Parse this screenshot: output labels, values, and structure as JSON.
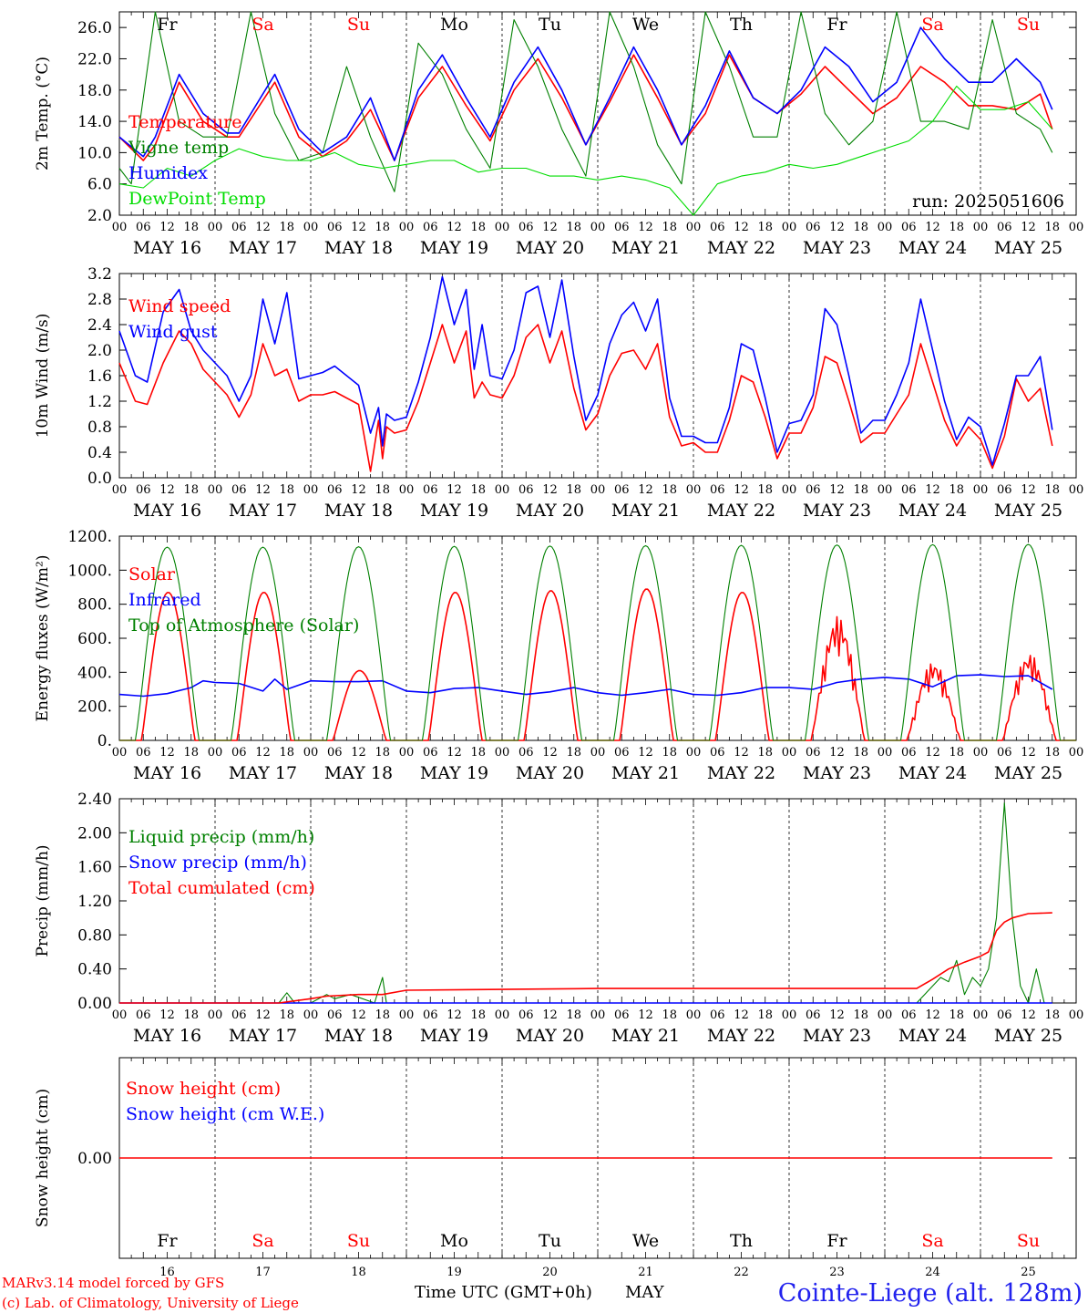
{
  "footer": {
    "credit_line1": "MARv3.14 model forced by GFS",
    "credit_line2": "(c) Lab. of Climatology, University of Liege",
    "xaxis_title": "Time UTC (GMT+0h)",
    "month": "MAY",
    "station": "Cointe-Liege (alt. 128m)"
  },
  "colors": {
    "red": "#ff0000",
    "blue": "#0000ff",
    "green": "#008000",
    "lime": "#00dd00",
    "grid": "#000000",
    "weekend": "#ff0000",
    "weekday": "#000000"
  },
  "timeline": {
    "days": [
      16,
      17,
      18,
      19,
      20,
      21,
      22,
      23,
      24,
      25
    ],
    "day_labels": [
      "MAY 16",
      "MAY 17",
      "MAY 18",
      "MAY 19",
      "MAY 20",
      "MAY 21",
      "MAY 22",
      "MAY 23",
      "MAY 24",
      "MAY 25"
    ],
    "day_numbers": [
      "16",
      "17",
      "18",
      "19",
      "20",
      "21",
      "22",
      "23",
      "24",
      "25"
    ],
    "weekdays": [
      "Fr",
      "Sa",
      "Su",
      "Mo",
      "Tu",
      "We",
      "Th",
      "Fr",
      "Sa",
      "Su"
    ],
    "weekend": [
      false,
      true,
      true,
      false,
      false,
      false,
      false,
      false,
      true,
      true
    ],
    "hour_ticks": [
      "00",
      "06",
      "12",
      "18"
    ],
    "final_tick": "00"
  },
  "chart_data": [
    {
      "type": "line",
      "ylabel": "2m Temp. (°C)",
      "ylim": [
        2,
        28
      ],
      "yticks": [
        "2.0",
        "6.0",
        "10.0",
        "14.0",
        "18.0",
        "22.0",
        "26.0"
      ],
      "ytick_values": [
        2,
        6,
        10,
        14,
        18,
        22,
        26
      ],
      "annotation": "run: 2025051606",
      "x_unit": "hours since MAY 16 00 UTC",
      "series": [
        {
          "name": "Temperature",
          "color": "red",
          "x": [
            0,
            6,
            9,
            15,
            21,
            27,
            30,
            39,
            45,
            51,
            57,
            63,
            69,
            75,
            81,
            87,
            93,
            99,
            105,
            111,
            117,
            123,
            129,
            135,
            141,
            147,
            153,
            159,
            165,
            171,
            177,
            183,
            189,
            195,
            201,
            207,
            213,
            219,
            225,
            231,
            234
          ],
          "y": [
            12,
            9,
            11,
            19,
            14,
            12,
            12,
            19,
            12,
            9.5,
            11.5,
            15.5,
            9,
            17,
            21,
            16,
            11.5,
            18,
            22,
            17,
            11,
            16.5,
            22.5,
            17,
            11,
            15,
            22.5,
            17,
            15,
            17.5,
            21,
            18,
            15,
            17,
            21,
            19,
            16,
            16,
            15.5,
            17.5,
            13
          ]
        },
        {
          "name": "Vigne temp",
          "color": "green",
          "x": [
            0,
            3,
            9,
            15,
            21,
            27,
            33,
            39,
            45,
            51,
            57,
            63,
            69,
            75,
            81,
            87,
            93,
            99,
            105,
            111,
            117,
            123,
            129,
            135,
            141,
            147,
            153,
            159,
            165,
            171,
            177,
            183,
            189,
            195,
            201,
            207,
            213,
            219,
            225,
            231,
            234
          ],
          "y": [
            8,
            6,
            28,
            14,
            12,
            12,
            28,
            15,
            9,
            10,
            21,
            12,
            5,
            24,
            20,
            13,
            8,
            27,
            21,
            13,
            7,
            28,
            21,
            11,
            6,
            28,
            21,
            12,
            12,
            28,
            15,
            11,
            14,
            28,
            14,
            14,
            13,
            27,
            15,
            13,
            10
          ]
        },
        {
          "name": "Humidex",
          "color": "blue",
          "x": [
            0,
            6,
            9,
            15,
            21,
            27,
            30,
            39,
            45,
            51,
            57,
            63,
            69,
            75,
            81,
            87,
            93,
            99,
            105,
            111,
            117,
            123,
            129,
            135,
            141,
            147,
            153,
            159,
            165,
            171,
            177,
            183,
            189,
            195,
            201,
            207,
            213,
            219,
            225,
            231,
            234
          ],
          "y": [
            12,
            9.5,
            12,
            20,
            15,
            12.5,
            12.5,
            20,
            13,
            10,
            12,
            17,
            9,
            18,
            22.5,
            17,
            12,
            19,
            23.5,
            18,
            11,
            17,
            23.5,
            18,
            11,
            16,
            23,
            17,
            15,
            18,
            23.5,
            21,
            16.5,
            19,
            26,
            22,
            19,
            19,
            22,
            19,
            15.5
          ]
        },
        {
          "name": "DewPoint Temp",
          "color": "lime",
          "x": [
            0,
            6,
            12,
            18,
            24,
            30,
            36,
            42,
            48,
            54,
            60,
            66,
            72,
            78,
            84,
            90,
            96,
            102,
            108,
            114,
            120,
            126,
            132,
            138,
            144,
            150,
            156,
            162,
            168,
            174,
            180,
            186,
            192,
            198,
            204,
            210,
            216,
            222,
            228,
            234
          ],
          "y": [
            6,
            5.5,
            8,
            7,
            9,
            10.5,
            9.5,
            9,
            9,
            10,
            8.5,
            8,
            8.5,
            9,
            9,
            7.5,
            8,
            8,
            7,
            7,
            6.5,
            7,
            6.5,
            5.5,
            2,
            6,
            7,
            7.5,
            8.5,
            8,
            8.5,
            9.5,
            10.5,
            11.5,
            14,
            18.5,
            15.5,
            15.5,
            16.5,
            13
          ]
        }
      ]
    },
    {
      "type": "line",
      "ylabel": "10m Wind (m/s)",
      "ylim": [
        0,
        3.2
      ],
      "yticks": [
        "0.0",
        "0.4",
        "0.8",
        "1.2",
        "1.6",
        "2.0",
        "2.4",
        "2.8",
        "3.2"
      ],
      "ytick_values": [
        0,
        0.4,
        0.8,
        1.2,
        1.6,
        2.0,
        2.4,
        2.8,
        3.2
      ],
      "x_unit": "hours since MAY 16 00 UTC",
      "series": [
        {
          "name": "Wind speed",
          "color": "red",
          "x": [
            0,
            4,
            7,
            11,
            15,
            18,
            21,
            24,
            27,
            30,
            33,
            36,
            39,
            42,
            45,
            48,
            51,
            54,
            57,
            60,
            63,
            65,
            66,
            67,
            69,
            72,
            75,
            78,
            81,
            84,
            87,
            89,
            91,
            93,
            96,
            99,
            102,
            105,
            108,
            111,
            114,
            117,
            120,
            123,
            126,
            129,
            132,
            135,
            138,
            141,
            144,
            147,
            150,
            153,
            156,
            159,
            162,
            165,
            168,
            171,
            174,
            177,
            180,
            183,
            186,
            189,
            192,
            195,
            198,
            201,
            204,
            207,
            210,
            213,
            216,
            219,
            222,
            225,
            228,
            231,
            234
          ],
          "y": [
            1.8,
            1.2,
            1.15,
            1.8,
            2.3,
            2.1,
            1.7,
            1.5,
            1.3,
            0.95,
            1.3,
            2.1,
            1.6,
            1.7,
            1.2,
            1.3,
            1.3,
            1.35,
            1.25,
            1.15,
            0.1,
            0.9,
            0.3,
            0.8,
            0.7,
            0.75,
            1.2,
            1.8,
            2.4,
            1.8,
            2.3,
            1.25,
            1.5,
            1.3,
            1.25,
            1.6,
            2.2,
            2.4,
            1.8,
            2.3,
            1.4,
            0.75,
            1.0,
            1.6,
            1.95,
            2.0,
            1.7,
            2.1,
            0.95,
            0.5,
            0.55,
            0.4,
            0.4,
            0.9,
            1.6,
            1.5,
            0.95,
            0.3,
            0.7,
            0.7,
            1.1,
            1.9,
            1.8,
            1.2,
            0.55,
            0.7,
            0.7,
            1.0,
            1.3,
            2.1,
            1.5,
            0.9,
            0.5,
            0.8,
            0.6,
            0.15,
            0.65,
            1.55,
            1.2,
            1.4,
            0.5
          ]
        },
        {
          "name": "Wind gust",
          "color": "blue",
          "x": [
            0,
            4,
            7,
            11,
            15,
            18,
            21,
            24,
            27,
            30,
            33,
            36,
            39,
            42,
            45,
            48,
            51,
            54,
            57,
            60,
            63,
            65,
            66,
            67,
            69,
            72,
            75,
            78,
            81,
            84,
            87,
            89,
            91,
            93,
            96,
            99,
            102,
            105,
            108,
            111,
            114,
            117,
            120,
            123,
            126,
            129,
            132,
            135,
            138,
            141,
            144,
            147,
            150,
            153,
            156,
            159,
            162,
            165,
            168,
            171,
            174,
            177,
            180,
            183,
            186,
            189,
            192,
            195,
            198,
            201,
            204,
            207,
            210,
            213,
            216,
            219,
            222,
            225,
            228,
            231,
            234
          ],
          "y": [
            2.3,
            1.6,
            1.5,
            2.6,
            2.95,
            2.3,
            2.0,
            1.8,
            1.6,
            1.2,
            1.6,
            2.8,
            2.1,
            2.9,
            1.55,
            1.6,
            1.65,
            1.75,
            1.6,
            1.45,
            0.7,
            1.1,
            0.5,
            1.0,
            0.9,
            0.95,
            1.5,
            2.2,
            3.15,
            2.4,
            2.95,
            1.7,
            2.4,
            1.6,
            1.55,
            2.0,
            2.9,
            3.0,
            2.2,
            3.1,
            1.9,
            0.9,
            1.3,
            2.1,
            2.55,
            2.75,
            2.3,
            2.8,
            1.25,
            0.65,
            0.65,
            0.55,
            0.55,
            1.1,
            2.1,
            2.0,
            1.25,
            0.4,
            0.85,
            0.9,
            1.3,
            2.65,
            2.4,
            1.6,
            0.7,
            0.9,
            0.9,
            1.3,
            1.8,
            2.8,
            2.0,
            1.2,
            0.6,
            0.95,
            0.8,
            0.2,
            0.85,
            1.6,
            1.6,
            1.9,
            0.75
          ]
        }
      ]
    },
    {
      "type": "line",
      "ylabel": "Energy fluxes (W/m²)",
      "ylim": [
        0,
        1200
      ],
      "yticks": [
        "0.",
        "200.",
        "400.",
        "600.",
        "800.",
        "1000.",
        "1200."
      ],
      "ytick_values": [
        0,
        200,
        400,
        600,
        800,
        1000,
        1200
      ],
      "x_unit": "hours since MAY 16 00 UTC",
      "series": [
        {
          "name": "Solar",
          "color": "red",
          "daily_peaks": [
            870,
            870,
            410,
            870,
            880,
            890,
            870,
            730,
            460,
            510
          ]
        },
        {
          "name": "Infrared",
          "color": "blue",
          "x": [
            0,
            6,
            12,
            18,
            21,
            24,
            30,
            36,
            39,
            42,
            48,
            54,
            60,
            66,
            72,
            78,
            84,
            90,
            96,
            102,
            108,
            114,
            120,
            126,
            132,
            138,
            144,
            150,
            156,
            162,
            168,
            174,
            180,
            186,
            192,
            198,
            204,
            210,
            216,
            222,
            228,
            234
          ],
          "y": [
            270,
            260,
            275,
            310,
            350,
            340,
            335,
            290,
            360,
            300,
            350,
            345,
            345,
            350,
            290,
            280,
            305,
            310,
            290,
            270,
            285,
            310,
            280,
            265,
            280,
            300,
            270,
            265,
            280,
            310,
            310,
            300,
            340,
            360,
            370,
            360,
            315,
            380,
            385,
            375,
            380,
            300
          ]
        },
        {
          "name": "Top of Atmosphere (Solar)",
          "color": "green",
          "daily_peaks": [
            1135,
            1135,
            1138,
            1140,
            1142,
            1144,
            1146,
            1148,
            1150,
            1152
          ]
        }
      ]
    },
    {
      "type": "line",
      "ylabel": "Precip (mm/h)",
      "ylim": [
        0,
        2.4
      ],
      "yticks": [
        "0.00",
        "0.40",
        "0.80",
        "1.20",
        "1.60",
        "2.00",
        "2.40"
      ],
      "ytick_values": [
        0,
        0.4,
        0.8,
        1.2,
        1.6,
        2.0,
        2.4
      ],
      "x_unit": "hours since MAY 16 00 UTC",
      "series": [
        {
          "name": "Liquid precip (mm/h)",
          "color": "green",
          "x": [
            0,
            40,
            42,
            44,
            48,
            52,
            54,
            58,
            64,
            66,
            67,
            70,
            234,
            200,
            206,
            208,
            210,
            212,
            214,
            216,
            218,
            220,
            222,
            224,
            226,
            228,
            230,
            232
          ],
          "y": [
            0,
            0,
            0.12,
            0,
            0,
            0.1,
            0.05,
            0.1,
            0,
            0.3,
            0,
            0,
            0,
            0.0,
            0.3,
            0.25,
            0.5,
            0.1,
            0.3,
            0.2,
            0.4,
            1.0,
            2.35,
            1.0,
            0.2,
            0.0,
            0.4,
            0.0
          ]
        },
        {
          "name": "Snow precip (mm/h)",
          "color": "blue",
          "x": [
            0,
            234
          ],
          "y": [
            0,
            0
          ]
        },
        {
          "name": "Total cumulated (cm)",
          "color": "red",
          "x": [
            0,
            40,
            48,
            52,
            60,
            66,
            72,
            96,
            120,
            150,
            200,
            204,
            208,
            212,
            216,
            218,
            220,
            222,
            224,
            228,
            234
          ],
          "y": [
            0,
            0,
            0.05,
            0.08,
            0.1,
            0.1,
            0.15,
            0.16,
            0.17,
            0.17,
            0.17,
            0.28,
            0.4,
            0.48,
            0.55,
            0.6,
            0.85,
            0.95,
            1.0,
            1.05,
            1.06
          ]
        }
      ]
    },
    {
      "type": "line",
      "ylabel": "Snow height (cm)",
      "ylim": [
        -1,
        1
      ],
      "yticks": [
        "0.00"
      ],
      "ytick_values": [
        0
      ],
      "x_unit": "hours since MAY 16 00 UTC",
      "series": [
        {
          "name": "Snow height (cm)",
          "color": "red",
          "x": [
            0,
            234
          ],
          "y": [
            0,
            0
          ]
        },
        {
          "name": "Snow height (cm W.E.)",
          "color": "blue",
          "x": [],
          "y": []
        }
      ]
    }
  ]
}
